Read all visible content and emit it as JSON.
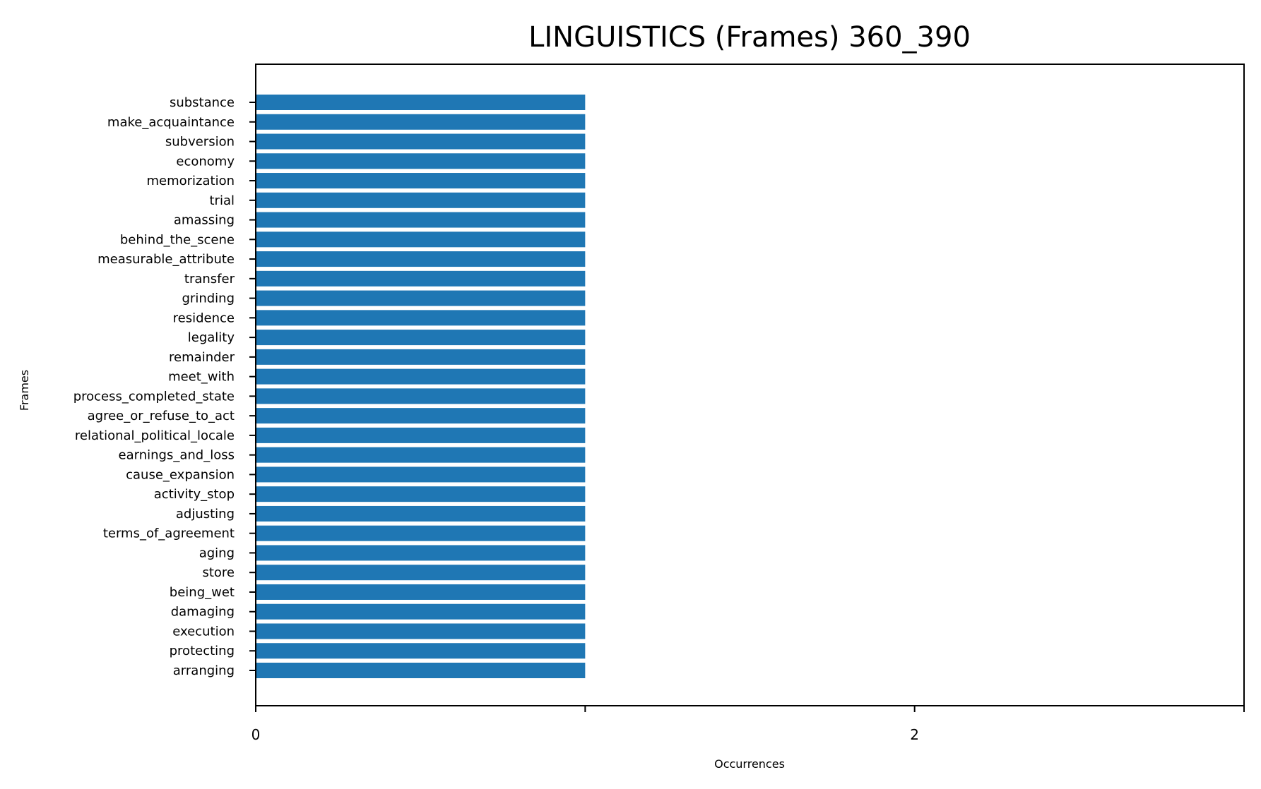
{
  "chart_data": {
    "type": "bar",
    "orientation": "horizontal",
    "title": "LINGUISTICS (Frames) 360_390",
    "xlabel": "Occurrences",
    "ylabel": "Frames",
    "categories": [
      "substance",
      "make_acquaintance",
      "subversion",
      "economy",
      "memorization",
      "trial",
      "amassing",
      "behind_the_scene",
      "measurable_attribute",
      "transfer",
      "grinding",
      "residence",
      "legality",
      "remainder",
      "meet_with",
      "process_completed_state",
      "agree_or_refuse_to_act",
      "relational_political_locale",
      "earnings_and_loss",
      "cause_expansion",
      "activity_stop",
      "adjusting",
      "terms_of_agreement",
      "aging",
      "store",
      "being_wet",
      "damaging",
      "execution",
      "protecting",
      "arranging"
    ],
    "values": [
      1,
      1,
      1,
      1,
      1,
      1,
      1,
      1,
      1,
      1,
      1,
      1,
      1,
      1,
      1,
      1,
      1,
      1,
      1,
      1,
      1,
      1,
      1,
      1,
      1,
      1,
      1,
      1,
      1,
      1
    ],
    "xlim": [
      0,
      3
    ],
    "x_ticks": [
      0,
      1,
      2,
      3
    ],
    "x_tick_labels": [
      "0",
      "",
      "2",
      ""
    ],
    "bar_color": "#1f77b4",
    "grid": false,
    "legend": "none"
  }
}
